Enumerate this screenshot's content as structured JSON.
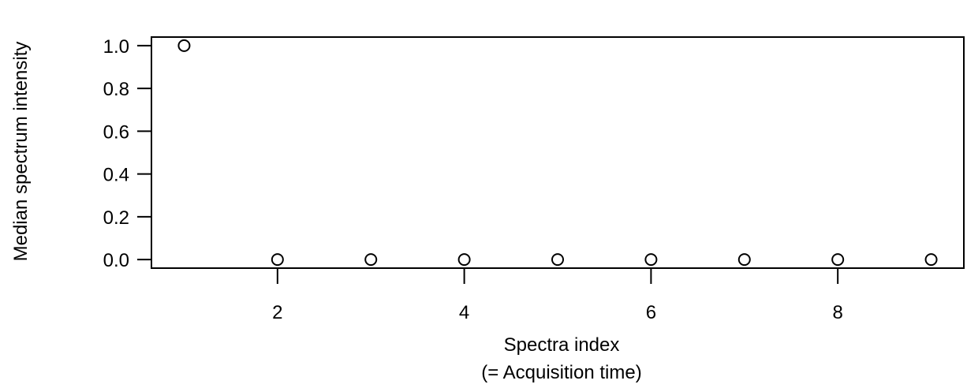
{
  "chart_data": {
    "type": "scatter",
    "xlabel": [
      "Spectra index",
      "(= Acquisition time)"
    ],
    "ylabel": "Median spectrum intensity",
    "x": [
      1,
      2,
      3,
      4,
      5,
      6,
      7,
      8,
      9
    ],
    "y": [
      1.0,
      0.0,
      0.0,
      0.0,
      0.0,
      0.0,
      0.0,
      0.0,
      0.0
    ],
    "xlim": [
      0.65,
      9.35
    ],
    "ylim": [
      -0.04,
      1.04
    ],
    "x_ticks": [
      2,
      4,
      6,
      8
    ],
    "x_tick_labels": [
      "2",
      "4",
      "6",
      "8"
    ],
    "y_ticks": [
      0.0,
      0.2,
      0.4,
      0.6,
      0.8,
      1.0
    ],
    "y_tick_labels": [
      "0.0",
      "0.2",
      "0.4",
      "0.6",
      "0.8",
      "1.0"
    ],
    "marker": "open-circle",
    "point_color": "#000000",
    "grid": false,
    "legend": "none"
  }
}
